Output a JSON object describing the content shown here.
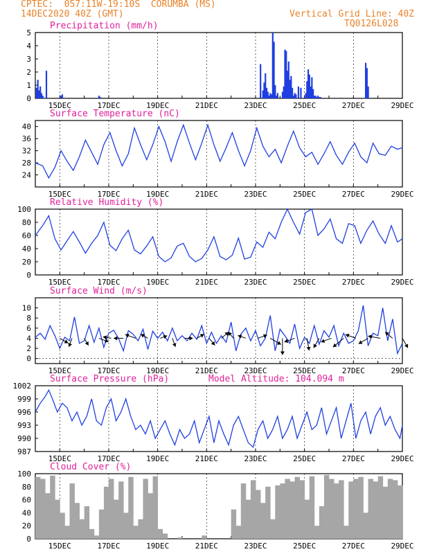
{
  "header": {
    "line1": "CPTEC:  057:11W-19:10S  CORUMBA (MS)",
    "line2": "14DEC2020 40Z (GMT)",
    "right1": "Vertical Grid Line: 40Z",
    "right2": "TQ0126L028"
  },
  "colors": {
    "header": "#e8822a",
    "title": "#e0209a",
    "line": "#1f3fe0",
    "bars": "#1f3fe0",
    "cloud": "#a6a6a6",
    "arrows": "#000000"
  },
  "x_axis": {
    "start": "2020-12-14 00Z",
    "end": "2020-12-29 00Z",
    "tick_labels": [
      "15DEC",
      "17DEC",
      "19DEC",
      "21DEC",
      "23DEC",
      "25DEC",
      "27DEC",
      "29DEC"
    ]
  },
  "chart_data": [
    {
      "id": "precip",
      "type": "bar",
      "title": "Precipitation (mm/h)",
      "ylim": [
        0,
        5
      ],
      "yticks": [
        "0",
        "1",
        "2",
        "3",
        "4",
        "5"
      ],
      "x": [
        0.05,
        0.1,
        0.15,
        0.2,
        0.25,
        0.3,
        0.45,
        1.05,
        1.1,
        2.6,
        2.65,
        9.2,
        9.3,
        9.35,
        9.4,
        9.45,
        9.5,
        9.55,
        9.6,
        9.65,
        9.7,
        9.75,
        9.8,
        9.85,
        9.9,
        10.1,
        10.15,
        10.2,
        10.25,
        10.3,
        10.35,
        10.4,
        10.45,
        10.5,
        10.55,
        10.6,
        10.65,
        10.75,
        10.85,
        11.05,
        11.1,
        11.15,
        11.2,
        11.25,
        11.3,
        11.35,
        11.4,
        11.45,
        11.5,
        11.55,
        11.6,
        11.65,
        13.5,
        13.55,
        13.6
      ],
      "values": [
        0.8,
        1.4,
        0.6,
        0.9,
        0.4,
        0.2,
        2.1,
        0.2,
        0.3,
        0.2,
        0.1,
        2.6,
        0.6,
        1.2,
        1.9,
        0.8,
        0.5,
        0.2,
        0.4,
        0.3,
        5.0,
        4.3,
        1.0,
        0.2,
        0.4,
        0.5,
        0.9,
        3.7,
        3.6,
        2.1,
        2.8,
        1.4,
        1.7,
        0.8,
        0.2,
        0.4,
        0.3,
        0.9,
        0.8,
        0.4,
        1.3,
        2.2,
        1.8,
        0.9,
        1.6,
        0.7,
        0.2,
        0.2,
        0.1,
        0.2,
        0.1,
        0.1,
        2.7,
        2.3,
        0.9
      ]
    },
    {
      "id": "temp",
      "type": "line",
      "title": "Surface Temperature (nC)",
      "ylim": [
        20,
        42
      ],
      "yticks": [
        "24",
        "28",
        "32",
        "36",
        "40"
      ],
      "x": [
        0,
        0.3,
        0.55,
        0.8,
        1.05,
        1.3,
        1.55,
        1.8,
        2.05,
        2.3,
        2.55,
        2.8,
        3.05,
        3.3,
        3.55,
        3.8,
        4.05,
        4.3,
        4.55,
        4.8,
        5.05,
        5.3,
        5.55,
        5.8,
        6.05,
        6.3,
        6.55,
        6.8,
        7.05,
        7.3,
        7.55,
        7.8,
        8.05,
        8.3,
        8.55,
        8.8,
        9.05,
        9.3,
        9.55,
        9.8,
        10.05,
        10.3,
        10.55,
        10.8,
        11.05,
        11.3,
        11.55,
        11.8,
        12.05,
        12.3,
        12.55,
        12.8,
        13.05,
        13.3,
        13.55,
        13.8,
        14.05,
        14.3,
        14.55,
        14.8,
        15.0
      ],
      "values": [
        28,
        27,
        23,
        26.5,
        32,
        28.5,
        25.5,
        30,
        35.5,
        31.5,
        27.5,
        34,
        38,
        32,
        27,
        31,
        39.5,
        34,
        29,
        34,
        40,
        35,
        28.5,
        35,
        40.5,
        34.5,
        29,
        34.5,
        40.5,
        34,
        28.5,
        33,
        38,
        32,
        27,
        32,
        39.5,
        33.5,
        30,
        32.5,
        28,
        33.5,
        38.5,
        33,
        30,
        31.5,
        27.5,
        31,
        35,
        30.5,
        27.5,
        31.5,
        34.5,
        30,
        28,
        34.5,
        31,
        30.5,
        33.5,
        32.5,
        33
      ]
    },
    {
      "id": "rh",
      "type": "line",
      "title": "Relative Humidity (%)",
      "ylim": [
        0,
        100
      ],
      "yticks": [
        "0",
        "20",
        "40",
        "60",
        "80",
        "100"
      ],
      "x": [
        0,
        0.3,
        0.55,
        0.8,
        1.05,
        1.3,
        1.55,
        1.8,
        2.05,
        2.3,
        2.55,
        2.8,
        3.05,
        3.3,
        3.55,
        3.8,
        4.05,
        4.3,
        4.55,
        4.8,
        5.05,
        5.3,
        5.55,
        5.8,
        6.05,
        6.3,
        6.55,
        6.8,
        7.05,
        7.3,
        7.55,
        7.8,
        8.05,
        8.3,
        8.55,
        8.8,
        9.05,
        9.3,
        9.55,
        9.8,
        10.05,
        10.3,
        10.55,
        10.8,
        11.05,
        11.3,
        11.55,
        11.8,
        12.05,
        12.3,
        12.55,
        12.8,
        13.05,
        13.3,
        13.55,
        13.8,
        14.05,
        14.3,
        14.55,
        14.8,
        15.0
      ],
      "values": [
        60,
        75,
        90,
        55,
        38,
        52,
        66,
        50,
        33,
        48,
        60,
        80,
        45,
        37,
        55,
        68,
        38,
        32,
        44,
        58,
        28,
        20,
        26,
        44,
        48,
        28,
        20,
        25,
        38,
        58,
        28,
        23,
        30,
        56,
        24,
        27,
        50,
        42,
        65,
        55,
        80,
        100,
        80,
        62,
        95,
        100,
        60,
        70,
        85,
        55,
        48,
        78,
        75,
        48,
        68,
        82,
        62,
        48,
        75,
        50,
        55
      ]
    },
    {
      "id": "wind",
      "type": "line",
      "title": "Surface Wind (m/s)",
      "ylim": [
        -1,
        12
      ],
      "yticks": [
        "0",
        "2",
        "4",
        "6",
        "8",
        "10"
      ],
      "x": [
        0,
        0.2,
        0.4,
        0.6,
        0.8,
        1.0,
        1.2,
        1.4,
        1.6,
        1.8,
        2.0,
        2.2,
        2.4,
        2.6,
        2.8,
        3.0,
        3.2,
        3.4,
        3.6,
        3.8,
        4.0,
        4.2,
        4.4,
        4.6,
        4.8,
        5.0,
        5.2,
        5.4,
        5.6,
        5.8,
        6.0,
        6.2,
        6.4,
        6.6,
        6.8,
        7.0,
        7.2,
        7.4,
        7.6,
        7.8,
        8.0,
        8.2,
        8.4,
        8.6,
        8.8,
        9.0,
        9.2,
        9.4,
        9.6,
        9.8,
        10.0,
        10.2,
        10.4,
        10.6,
        10.8,
        11.0,
        11.2,
        11.4,
        11.6,
        11.8,
        12.0,
        12.2,
        12.4,
        12.6,
        12.8,
        13.0,
        13.2,
        13.4,
        13.6,
        13.8,
        14.0,
        14.2,
        14.4,
        14.6,
        14.8,
        15.0
      ],
      "values": [
        4.2,
        5.0,
        3.8,
        6.5,
        4.5,
        2.0,
        4.2,
        3.5,
        8.2,
        3.0,
        3.5,
        6.5,
        3.2,
        6.0,
        2.2,
        5.0,
        5.6,
        4.0,
        1.5,
        5.5,
        4.8,
        3.5,
        5.8,
        1.8,
        5.4,
        4.0,
        5.2,
        3.5,
        6.0,
        3.5,
        4.5,
        3.5,
        5.0,
        3.8,
        6.5,
        3.0,
        5.2,
        3.0,
        4.5,
        3.2,
        7.2,
        1.5,
        4.8,
        6.0,
        3.5,
        5.5,
        2.5,
        4.0,
        8.5,
        1.5,
        5.8,
        4.5,
        3.0,
        6.8,
        2.0,
        4.2,
        3.0,
        6.5,
        2.8,
        5.5,
        4.2,
        6.5,
        2.5,
        5.0,
        3.0,
        3.5,
        5.5,
        10.5,
        2.5,
        5.0,
        4.5,
        10.0,
        3.5,
        7.8,
        1.0,
        3.0
      ],
      "arrows_x": [
        1.0,
        1.5,
        2.0,
        2.6,
        3.1,
        3.6,
        4.1,
        4.6,
        5.1,
        5.6,
        6.1,
        6.6,
        7.1,
        7.6,
        8.1,
        8.6,
        9.1,
        9.6,
        10.1,
        10.6,
        11.1,
        11.6,
        12.1,
        12.6,
        13.1,
        13.6,
        14.1,
        14.6,
        15.0
      ],
      "arrows_speed": [
        2.0,
        1.8,
        1.5,
        2.2,
        1.5,
        2.0,
        2.5,
        1.5,
        1.2,
        1.8,
        1.5,
        1.5,
        1.8,
        2.0,
        1.5,
        1.5,
        2.0,
        3.0,
        4.5,
        2.5,
        3.0,
        2.5,
        2.5,
        3.5,
        2.5,
        2.5,
        3.0,
        2.0,
        2.5
      ],
      "arrows_dir": [
        120,
        200,
        150,
        110,
        280,
        270,
        290,
        300,
        70,
        160,
        90,
        60,
        140,
        50,
        320,
        290,
        70,
        120,
        180,
        250,
        170,
        210,
        250,
        230,
        290,
        240,
        280,
        310,
        150
      ]
    },
    {
      "id": "pres",
      "type": "line",
      "title": "Surface Pressure (hPa)",
      "annotation": "Model Altitude: 104.094 m",
      "ylim": [
        987,
        1002
      ],
      "yticks": [
        "987",
        "990",
        "993",
        "996",
        "999",
        "1002"
      ],
      "x": [
        0,
        0.2,
        0.4,
        0.55,
        0.7,
        0.9,
        1.1,
        1.3,
        1.5,
        1.7,
        1.9,
        2.1,
        2.3,
        2.5,
        2.7,
        2.9,
        3.1,
        3.3,
        3.5,
        3.7,
        3.9,
        4.1,
        4.3,
        4.5,
        4.7,
        4.9,
        5.1,
        5.3,
        5.5,
        5.7,
        5.9,
        6.1,
        6.3,
        6.5,
        6.7,
        6.9,
        7.1,
        7.3,
        7.5,
        7.7,
        7.9,
        8.1,
        8.3,
        8.5,
        8.7,
        8.9,
        9.1,
        9.3,
        9.5,
        9.7,
        9.9,
        10.1,
        10.3,
        10.5,
        10.7,
        10.9,
        11.1,
        11.3,
        11.5,
        11.7,
        11.9,
        12.1,
        12.3,
        12.5,
        12.7,
        12.9,
        13.1,
        13.3,
        13.5,
        13.7,
        13.9,
        14.1,
        14.3,
        14.5,
        14.7,
        14.9,
        15.0
      ],
      "values": [
        996,
        998,
        999.5,
        1001,
        999,
        996,
        998,
        997,
        994,
        996,
        993,
        995,
        999,
        994,
        993,
        997,
        999,
        994,
        996,
        999,
        995,
        992,
        993,
        991,
        994,
        990,
        992,
        994,
        991,
        988.5,
        992,
        990,
        991,
        994,
        989,
        992,
        995,
        989,
        994,
        991,
        988.5,
        993,
        995,
        992,
        989,
        988,
        992,
        994,
        990,
        992,
        995,
        990,
        992,
        995,
        990,
        993,
        996,
        992,
        993,
        997,
        991,
        994,
        997,
        990,
        994,
        998,
        990,
        994,
        996,
        991,
        995,
        997,
        993,
        995,
        992,
        990,
        993
      ]
    },
    {
      "id": "cloud",
      "type": "bar",
      "title": "Cloud Cover (%)",
      "ylim": [
        0,
        100
      ],
      "yticks": [
        "0",
        "20",
        "40",
        "60",
        "80",
        "100"
      ],
      "x": [
        0,
        0.2,
        0.4,
        0.6,
        0.8,
        1.0,
        1.2,
        1.4,
        1.6,
        1.8,
        2.0,
        2.2,
        2.4,
        2.6,
        2.8,
        3.0,
        3.2,
        3.4,
        3.6,
        3.8,
        4.0,
        4.2,
        4.4,
        4.6,
        4.8,
        5.0,
        5.2,
        5.4,
        5.6,
        5.8,
        6.0,
        6.2,
        6.4,
        6.6,
        6.8,
        7.0,
        7.2,
        7.4,
        7.6,
        7.8,
        8.0,
        8.2,
        8.4,
        8.6,
        8.8,
        9.0,
        9.2,
        9.4,
        9.6,
        9.8,
        10.0,
        10.2,
        10.4,
        10.6,
        10.8,
        11.0,
        11.2,
        11.4,
        11.6,
        11.8,
        12.0,
        12.2,
        12.4,
        12.6,
        12.8,
        13.0,
        13.2,
        13.4,
        13.6,
        13.8,
        14.0,
        14.2,
        14.4,
        14.6,
        14.8
      ],
      "values": [
        95,
        92,
        70,
        97,
        60,
        40,
        20,
        85,
        55,
        30,
        50,
        15,
        5,
        45,
        80,
        92,
        60,
        88,
        40,
        95,
        20,
        30,
        92,
        70,
        96,
        15,
        8,
        0,
        0,
        2,
        0,
        0,
        0,
        0,
        5,
        0,
        0,
        0,
        0,
        0,
        45,
        20,
        85,
        60,
        90,
        75,
        55,
        80,
        30,
        82,
        85,
        92,
        88,
        95,
        90,
        60,
        96,
        20,
        50,
        98,
        92,
        85,
        90,
        20,
        88,
        92,
        95,
        40,
        92,
        88,
        96,
        80,
        92,
        90,
        82
      ]
    }
  ]
}
